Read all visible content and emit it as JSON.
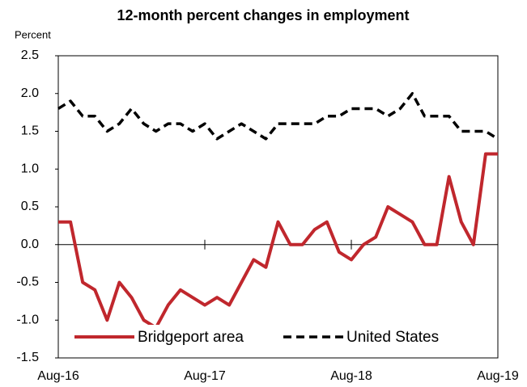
{
  "chart_data": {
    "type": "line",
    "title": "12-month percent changes in employment",
    "y_label": "Percent",
    "categories": [
      "Aug-16",
      null,
      null,
      null,
      null,
      null,
      null,
      null,
      null,
      null,
      null,
      null,
      "Aug-17",
      null,
      null,
      null,
      null,
      null,
      null,
      null,
      null,
      null,
      null,
      null,
      "Aug-18",
      null,
      null,
      null,
      null,
      null,
      null,
      null,
      null,
      null,
      null,
      null,
      "Aug-19"
    ],
    "series": [
      {
        "name": "Bridgeport area",
        "color": "#c0272d",
        "dash": false,
        "values": [
          0.3,
          0.3,
          -0.5,
          -0.6,
          -1.0,
          -0.5,
          -0.7,
          -1.0,
          -1.1,
          -0.8,
          -0.6,
          -0.7,
          -0.8,
          -0.7,
          -0.8,
          -0.5,
          -0.2,
          -0.3,
          0.3,
          0.0,
          0.0,
          0.2,
          0.3,
          -0.1,
          -0.2,
          0.0,
          0.1,
          0.5,
          0.4,
          0.3,
          0.0,
          0.0,
          0.9,
          0.3,
          0.0,
          1.2,
          1.2
        ]
      },
      {
        "name": "United States",
        "color": "#000000",
        "dash": true,
        "values": [
          1.8,
          1.9,
          1.7,
          1.7,
          1.5,
          1.6,
          1.8,
          1.6,
          1.5,
          1.6,
          1.6,
          1.5,
          1.6,
          1.4,
          1.5,
          1.6,
          1.5,
          1.4,
          1.6,
          1.6,
          1.6,
          1.6,
          1.7,
          1.7,
          1.8,
          1.8,
          1.8,
          1.7,
          1.8,
          2.0,
          1.7,
          1.7,
          1.7,
          1.5,
          1.5,
          1.5,
          1.4
        ]
      }
    ],
    "ylim": [
      -1.5,
      2.5
    ],
    "yticks": [
      2.5,
      {
        "value": 2,
        "label": "2.0"
      },
      1.5,
      {
        "value": 1,
        "label": "1.0"
      },
      0.5,
      {
        "value": 0,
        "label": "0.0"
      },
      -0.5,
      {
        "value": -1,
        "label": "-1.0"
      },
      -1.5
    ],
    "grid": false,
    "legend": "bottom"
  }
}
